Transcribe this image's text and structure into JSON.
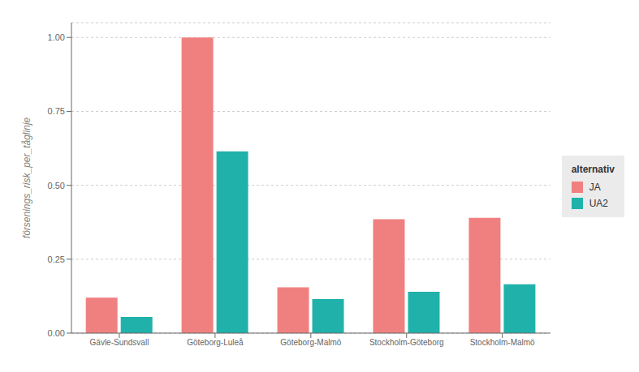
{
  "chart_data": {
    "type": "bar",
    "categories": [
      "Gävle-Sundsvall",
      "Göteborg-Luleå",
      "Göteborg-Malmö",
      "Stockholm-Göteborg",
      "Stockholm-Malmö"
    ],
    "series": [
      {
        "name": "JA",
        "color": "#F08080",
        "values": [
          0.12,
          1.0,
          0.155,
          0.385,
          0.39
        ]
      },
      {
        "name": "UA2",
        "color": "#20B2AA",
        "values": [
          0.055,
          0.615,
          0.115,
          0.14,
          0.165
        ]
      }
    ],
    "ylabel": "försenings_risk_per_tåglinje",
    "legend_title": "alternativ",
    "ylim": [
      0,
      1.05
    ],
    "yticks": [
      {
        "value": 0,
        "label": "0.00"
      },
      0.25,
      {
        "value": 0.5,
        "label": "0.50"
      },
      0.75,
      {
        "value": 1,
        "label": "1.00"
      }
    ],
    "grid": true,
    "legend": "right"
  }
}
